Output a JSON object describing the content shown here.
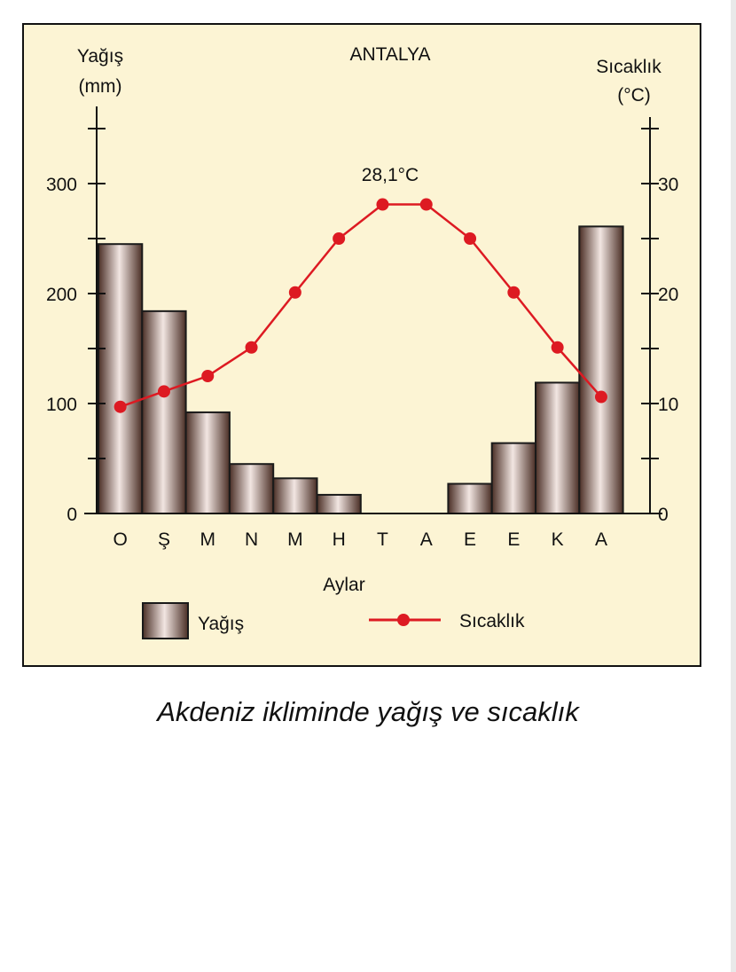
{
  "caption": "Akdeniz ikliminde yağış ve sıcaklık",
  "chart_data": {
    "type": "bar+line",
    "title": "ANTALYA",
    "xlabel": "Aylar",
    "left_axis": {
      "label_line1": "Yağış",
      "label_line2": "(mm)",
      "ylim": [
        0,
        350
      ],
      "ticks": [
        0,
        100,
        200,
        300
      ]
    },
    "right_axis": {
      "label_line1": "Sıcaklık",
      "label_line2": "(°C)",
      "ylim": [
        0,
        35
      ],
      "ticks": [
        0,
        10,
        20,
        30
      ]
    },
    "categories": [
      "O",
      "Ş",
      "M",
      "N",
      "M",
      "H",
      "T",
      "A",
      "E",
      "E",
      "K",
      "A"
    ],
    "series": [
      {
        "name": "Yağış",
        "type": "bar",
        "axis": "left",
        "values": [
          245,
          184,
          92,
          45,
          32,
          17,
          0,
          0,
          27,
          64,
          119,
          261
        ]
      },
      {
        "name": "Sıcaklık",
        "type": "line",
        "axis": "right",
        "values": [
          9.7,
          11.1,
          12.5,
          15.1,
          20.1,
          25.0,
          28.1,
          28.1,
          25.0,
          20.1,
          15.1,
          10.6
        ]
      }
    ],
    "annotation": "28,1°C",
    "colors": {
      "bar_dark": "#4a2e25",
      "bar_light": "#f2e6e2",
      "bar_edge": "#1a1a1a",
      "line": "#dd1a22",
      "background": "#fcf4d4"
    }
  }
}
